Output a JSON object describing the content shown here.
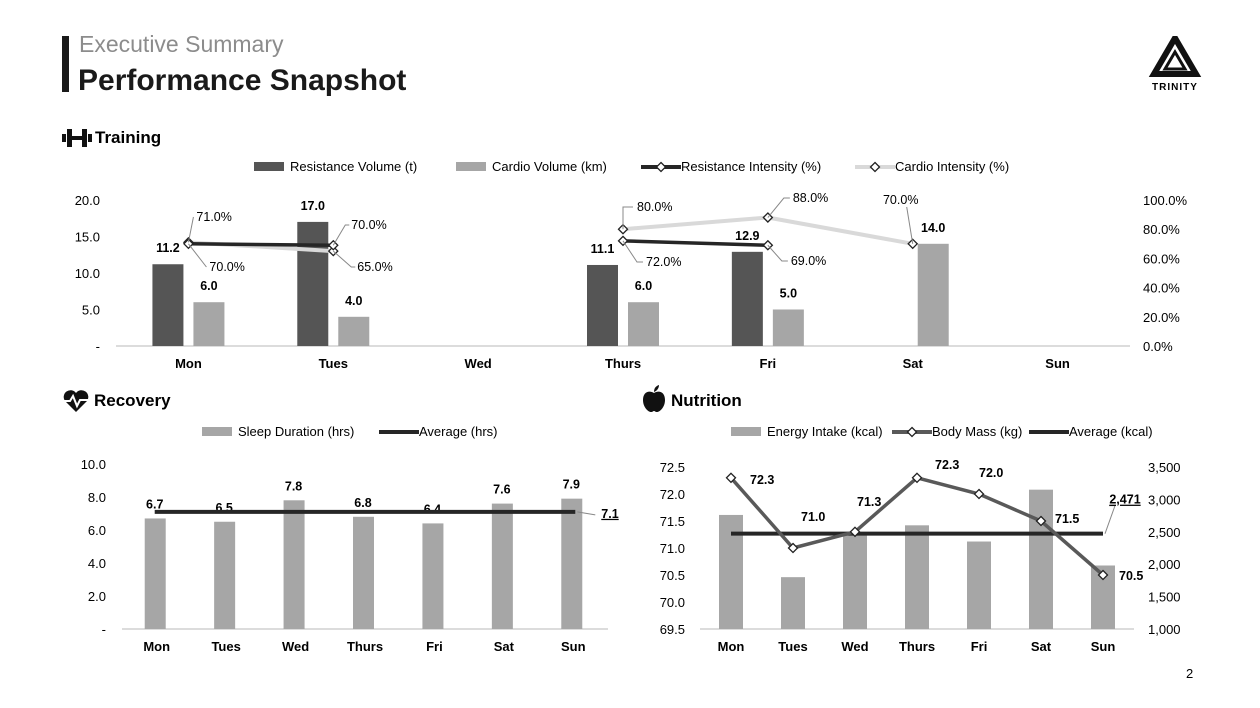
{
  "header": {
    "eyebrow": "Executive Summary",
    "title": "Performance Snapshot"
  },
  "logo": {
    "name": "TRINITY"
  },
  "page_number": "2",
  "sections": {
    "training": {
      "title": "Training",
      "icon": "dumbbell-icon"
    },
    "recovery": {
      "title": "Recovery",
      "icon": "heartbeat-icon"
    },
    "nutrition": {
      "title": "Nutrition",
      "icon": "apple-icon"
    }
  },
  "colors": {
    "dark": "#555555",
    "light": "#a6a6a6",
    "line_dark": "#262626",
    "line_light": "#d9d9d9",
    "axis": "#d0d0d0"
  },
  "chart_data": [
    {
      "id": "training",
      "type": "bar",
      "title": "Training",
      "categories": [
        "Mon",
        "Tues",
        "Wed",
        "Thurs",
        "Fri",
        "Sat",
        "Sun"
      ],
      "ylim": [
        0,
        20
      ],
      "y_ticks": [
        "-",
        "5.0",
        "10.0",
        "15.0",
        "20.0"
      ],
      "y2lim": [
        0,
        100
      ],
      "y2_ticks": [
        "0.0%",
        "20.0%",
        "40.0%",
        "60.0%",
        "80.0%",
        "100.0%"
      ],
      "legend": [
        "Resistance Volume (t)",
        "Cardio Volume (km)",
        "Resistance Intensity (%)",
        "Cardio Intensity (%)"
      ],
      "series": [
        {
          "name": "Resistance Volume (t)",
          "kind": "bar",
          "values": [
            11.2,
            17.0,
            null,
            11.1,
            12.9,
            null,
            null
          ],
          "labels": [
            "11.2",
            "17.0",
            "",
            "11.1",
            "12.9",
            "",
            ""
          ]
        },
        {
          "name": "Cardio Volume (km)",
          "kind": "bar",
          "values": [
            6.0,
            4.0,
            null,
            6.0,
            5.0,
            14.0,
            null
          ],
          "labels": [
            "6.0",
            "4.0",
            "",
            "6.0",
            "5.0",
            "14.0",
            ""
          ]
        },
        {
          "name": "Resistance Intensity (%)",
          "kind": "line",
          "axis": "right",
          "values": [
            70,
            69,
            null,
            72,
            69,
            null,
            null
          ],
          "labels": [
            "70.0%",
            "",
            "",
            "72.0%",
            "69.0%",
            "",
            ""
          ]
        },
        {
          "name": "Cardio Intensity (%)",
          "kind": "line",
          "axis": "right",
          "values": [
            71,
            65,
            null,
            80,
            88,
            70,
            null
          ],
          "labels": [
            "71.0%",
            "65.0%",
            "",
            "80.0%",
            "88.0%",
            "70.0%",
            ""
          ]
        }
      ],
      "extra_labels": [
        "70.0%"
      ]
    },
    {
      "id": "recovery",
      "type": "bar",
      "title": "Recovery",
      "categories": [
        "Mon",
        "Tues",
        "Wed",
        "Thurs",
        "Fri",
        "Sat",
        "Sun"
      ],
      "ylim": [
        0,
        10
      ],
      "y_ticks": [
        "-",
        "2.0",
        "4.0",
        "6.0",
        "8.0",
        "10.0"
      ],
      "legend": [
        "Sleep Duration (hrs)",
        "Average (hrs)"
      ],
      "series": [
        {
          "name": "Sleep Duration (hrs)",
          "kind": "bar",
          "values": [
            6.7,
            6.5,
            7.8,
            6.8,
            6.4,
            7.6,
            7.9
          ],
          "labels": [
            "6.7",
            "6.5",
            "7.8",
            "6.8",
            "6.4",
            "7.6",
            "7.9"
          ]
        },
        {
          "name": "Average (hrs)",
          "kind": "line",
          "value": 7.1,
          "label": "7.1"
        }
      ]
    },
    {
      "id": "nutrition",
      "type": "bar",
      "title": "Nutrition",
      "categories": [
        "Mon",
        "Tues",
        "Wed",
        "Thurs",
        "Fri",
        "Sat",
        "Sun"
      ],
      "ylim": [
        69.5,
        72.5
      ],
      "y_ticks": [
        "69.5",
        "70.0",
        "70.5",
        "71.0",
        "71.5",
        "72.0",
        "72.5"
      ],
      "y2lim": [
        1000,
        3500
      ],
      "y2_ticks": [
        "1,000",
        "1,500",
        "2,000",
        "2,500",
        "3,000",
        "3,500"
      ],
      "legend": [
        "Energy Intake (kcal)",
        "Body Mass (kg)",
        "Average (kcal)"
      ],
      "series": [
        {
          "name": "Energy Intake (kcal)",
          "kind": "bar",
          "axis": "right",
          "values": [
            2760,
            1800,
            2450,
            2600,
            2350,
            3150,
            1980
          ]
        },
        {
          "name": "Body Mass (kg)",
          "kind": "line",
          "values": [
            72.3,
            71.0,
            71.3,
            72.3,
            72.0,
            71.5,
            70.5
          ],
          "labels": [
            "72.3",
            "71.0",
            "71.3",
            "72.3",
            "72.0",
            "71.5",
            "70.5"
          ]
        },
        {
          "name": "Average (kcal)",
          "kind": "line",
          "axis": "right",
          "value": 2471,
          "label": "2,471"
        }
      ]
    }
  ]
}
